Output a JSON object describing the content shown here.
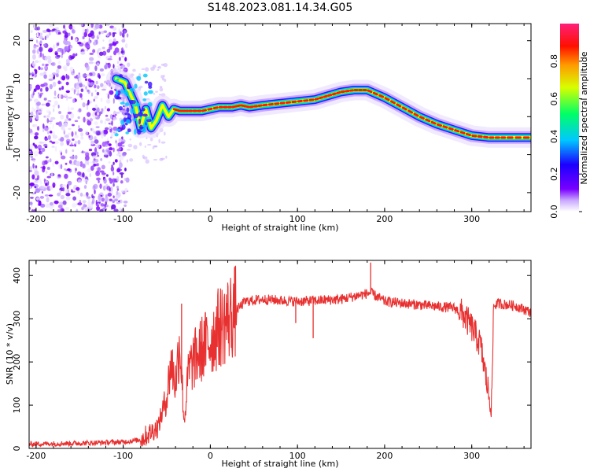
{
  "title": "S148.2023.081.14.34.G05",
  "chart_data": [
    {
      "type": "heatmap",
      "xlabel": "Height of straight line (km)",
      "ylabel": "Frequency (Hz)",
      "xlim": [
        -208,
        368
      ],
      "ylim": [
        -25,
        24.5
      ],
      "xticks": [
        -200,
        -100,
        0,
        100,
        200,
        300
      ],
      "yticks": [
        -20,
        -10,
        0,
        10,
        20
      ],
      "colorbar": {
        "label": "Normalized spectral amplitude",
        "range": [
          0,
          1
        ],
        "ticks": [
          "0.0",
          "0.2",
          "0.4",
          "0.6",
          "0.8"
        ],
        "colormap": [
          "#ffffff",
          "#7a00ff",
          "#0000ff",
          "#00c8ff",
          "#00ff66",
          "#ffff00",
          "#ff8800",
          "#ff0000",
          "#ff1f7a"
        ]
      },
      "ridge": {
        "x": [
          -108,
          -98,
          -92,
          -86,
          -80,
          -74,
          -68,
          -62,
          -55,
          -48,
          -42,
          -35,
          -25,
          -10,
          10,
          25,
          35,
          45,
          60,
          80,
          100,
          120,
          135,
          150,
          165,
          180,
          200,
          220,
          240,
          260,
          280,
          300,
          320,
          340,
          368
        ],
        "y": [
          10,
          9,
          6,
          3,
          -3,
          2,
          -3,
          -1,
          3,
          0,
          2,
          1.5,
          1.5,
          1.5,
          2.5,
          2.5,
          3,
          2.5,
          3,
          3.5,
          4,
          4.5,
          5.5,
          6.5,
          7,
          7,
          5,
          2.5,
          0,
          -2,
          -3.5,
          -5,
          -5.5,
          -5.5,
          -5.5
        ]
      },
      "noise_region": {
        "x": [
          -208,
          -95
        ],
        "level": "low"
      }
    },
    {
      "type": "line",
      "xlabel": "Height of straight line (km)",
      "ylabel": "SNR (10 * v/v)",
      "xlim": [
        -208,
        368
      ],
      "ylim": [
        0,
        435
      ],
      "xticks": [
        -200,
        -100,
        0,
        100,
        200,
        300
      ],
      "yticks": [
        0,
        100,
        200,
        300,
        400
      ],
      "series": [
        {
          "color": "#e83030",
          "x": [
            -208,
            -150,
            -100,
            -80,
            -60,
            -50,
            -45,
            -40,
            -35,
            -30,
            -25,
            -20,
            -10,
            0,
            10,
            20,
            30,
            40,
            60,
            100,
            150,
            184,
            200,
            250,
            280,
            290,
            300,
            310,
            315,
            320,
            323,
            325,
            330,
            350,
            368
          ],
          "y": [
            10,
            12,
            15,
            20,
            50,
            120,
            200,
            150,
            250,
            60,
            180,
            200,
            230,
            250,
            280,
            300,
            320,
            340,
            345,
            340,
            345,
            360,
            340,
            330,
            325,
            310,
            280,
            240,
            180,
            120,
            100,
            330,
            335,
            330,
            315
          ]
        }
      ],
      "spikes": [
        {
          "x": -33,
          "y": 335
        },
        {
          "x": 184,
          "y": 430
        },
        {
          "x": 118,
          "y": 255
        },
        {
          "x": 98,
          "y": 290
        }
      ]
    }
  ]
}
